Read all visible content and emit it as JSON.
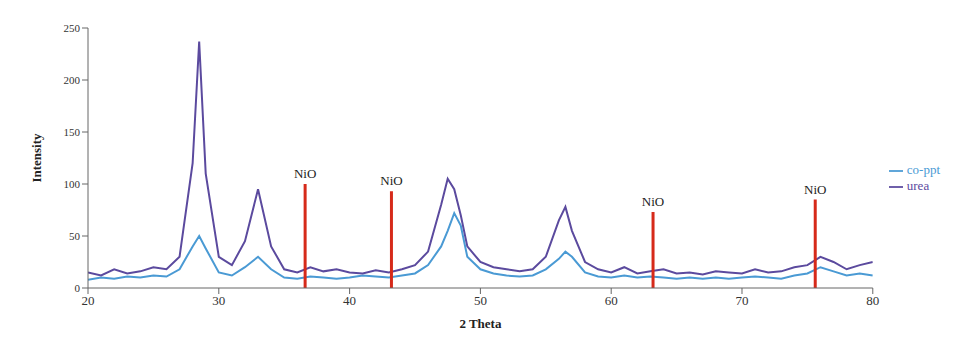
{
  "chart_data": {
    "type": "line",
    "x_label": "2 Theta",
    "y_label": "Intensity",
    "x": [
      20,
      21,
      22,
      23,
      24,
      25,
      26,
      27,
      28,
      28.5,
      29,
      30,
      31,
      32,
      33,
      34,
      35,
      36,
      37,
      38,
      39,
      40,
      41,
      42,
      43,
      44,
      45,
      46,
      47,
      47.5,
      48,
      48.5,
      49,
      50,
      51,
      52,
      53,
      54,
      55,
      56,
      56.5,
      57,
      58,
      59,
      60,
      61,
      62,
      63,
      64,
      65,
      66,
      67,
      68,
      69,
      70,
      71,
      72,
      73,
      74,
      75,
      76,
      77,
      78,
      79,
      80
    ],
    "series": [
      {
        "name": "co-ppt",
        "color": "#4a9ad4",
        "values": [
          8,
          10,
          9,
          11,
          10,
          12,
          11,
          18,
          40,
          50,
          38,
          15,
          12,
          20,
          30,
          18,
          10,
          9,
          11,
          10,
          9,
          10,
          12,
          11,
          10,
          12,
          14,
          22,
          40,
          55,
          72,
          60,
          30,
          18,
          14,
          12,
          11,
          12,
          18,
          28,
          35,
          30,
          15,
          11,
          10,
          12,
          10,
          11,
          10,
          9,
          10,
          9,
          10,
          9,
          10,
          11,
          10,
          9,
          12,
          14,
          20,
          16,
          12,
          14,
          12
        ]
      },
      {
        "name": "urea",
        "color": "#5b4a9e",
        "values": [
          15,
          12,
          18,
          14,
          16,
          20,
          18,
          30,
          120,
          237,
          110,
          30,
          22,
          45,
          95,
          40,
          18,
          15,
          20,
          16,
          18,
          15,
          14,
          17,
          15,
          18,
          22,
          35,
          80,
          105,
          95,
          70,
          40,
          25,
          20,
          18,
          16,
          18,
          30,
          65,
          78,
          55,
          25,
          18,
          15,
          20,
          14,
          16,
          18,
          14,
          15,
          13,
          16,
          15,
          14,
          18,
          15,
          16,
          20,
          22,
          30,
          25,
          18,
          22,
          25
        ]
      }
    ],
    "annotations": [
      {
        "text": "NiO",
        "x": 36.6,
        "y": 100,
        "color": "#d62a1a"
      },
      {
        "text": "NiO",
        "x": 43.2,
        "y": 93,
        "color": "#d62a1a"
      },
      {
        "text": "NiO",
        "x": 63.2,
        "y": 73,
        "color": "#d62a1a"
      },
      {
        "text": "NiO",
        "x": 75.6,
        "y": 85,
        "color": "#d62a1a"
      }
    ],
    "xlim": [
      20,
      80
    ],
    "xticks": [
      20,
      30,
      40,
      50,
      60,
      70,
      80
    ],
    "ylim": [
      0,
      250
    ],
    "yticks": [
      0,
      50,
      100,
      150,
      200,
      250
    ],
    "grid": false,
    "legend": "right"
  }
}
